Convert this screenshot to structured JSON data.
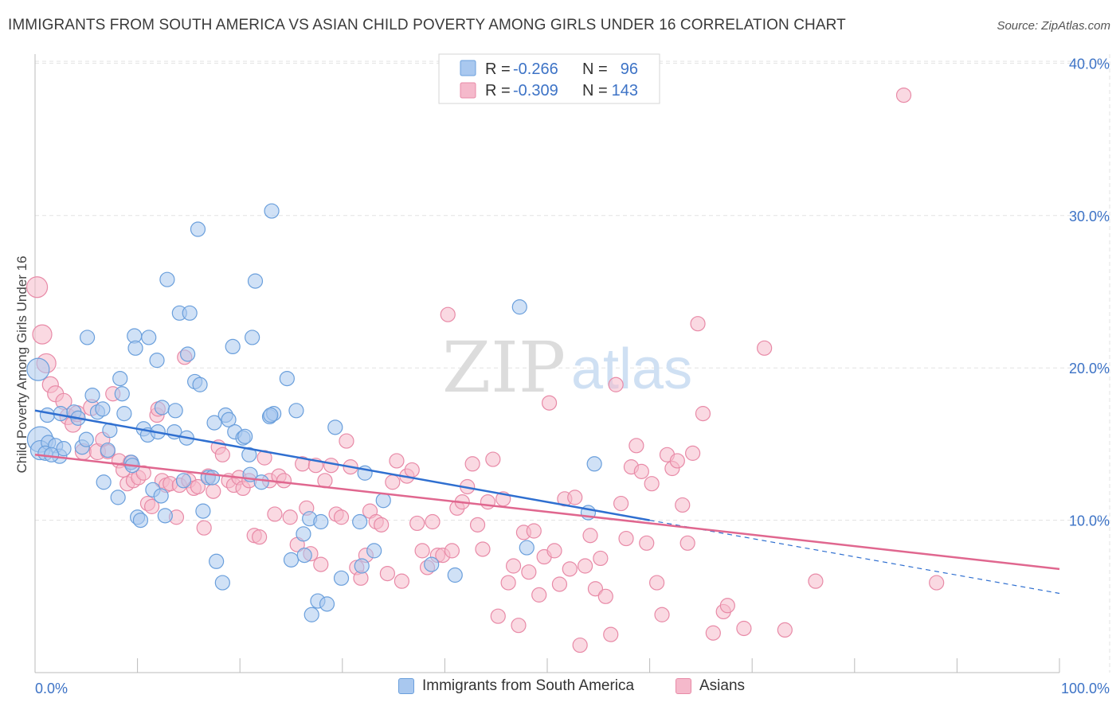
{
  "title": "IMMIGRANTS FROM SOUTH AMERICA VS ASIAN CHILD POVERTY AMONG GIRLS UNDER 16 CORRELATION CHART",
  "source": "Source: ZipAtlas.com",
  "watermark": {
    "zip": "ZIP",
    "atlas": "atlas"
  },
  "colors": {
    "blue_fill": "#a9c8ef",
    "blue_stroke": "#6a9fdc",
    "blue_line": "#2f6fd0",
    "pink_fill": "#f5b9cb",
    "pink_stroke": "#e88aa7",
    "pink_line": "#e0678f",
    "axis_text": "#3d73c6",
    "grid": "#e3e3e3"
  },
  "stats": {
    "rows": [
      {
        "r_label": "R =",
        "r_value": "-0.266",
        "n_label": "N =",
        "n_value": "96",
        "series": "blue"
      },
      {
        "r_label": "R =",
        "r_value": "-0.309",
        "n_label": "N =",
        "n_value": "143",
        "series": "pink"
      }
    ]
  },
  "chart_data": {
    "type": "scatter",
    "title": "IMMIGRANTS FROM SOUTH AMERICA VS ASIAN CHILD POVERTY AMONG GIRLS UNDER 16 CORRELATION CHART",
    "xlabel": "",
    "ylabel": "Child Poverty Among Girls Under 16",
    "xlim": [
      0,
      100
    ],
    "ylim": [
      0,
      42
    ],
    "x_tick_labels": [
      "0.0%",
      "100.0%"
    ],
    "y_ticks": [
      10,
      20,
      30,
      40
    ],
    "y_tick_labels": [
      "10.0%",
      "20.0%",
      "30.0%",
      "40.0%"
    ],
    "grid": true,
    "legend_position": "bottom-center",
    "series": [
      {
        "name": "Immigrants from South America",
        "color": "#a9c8ef",
        "trend": {
          "x": [
            0,
            60
          ],
          "y": [
            17.2,
            10.0
          ],
          "dashed_extension": {
            "x": [
              60,
              100
            ],
            "y": [
              10.0,
              5.2
            ]
          }
        },
        "points": [
          [
            0.5,
            15.3,
            16
          ],
          [
            0.5,
            14.6,
            12
          ],
          [
            1.2,
            16.9,
            9
          ],
          [
            1.3,
            15.1,
            9
          ],
          [
            2.0,
            14.9,
            9
          ],
          [
            2.4,
            14.2,
            9
          ],
          [
            2.5,
            17.0,
            9
          ],
          [
            2.8,
            14.7,
            9
          ],
          [
            3.8,
            17.1,
            9
          ],
          [
            4.2,
            16.7,
            9
          ],
          [
            4.6,
            14.8,
            9
          ],
          [
            5.1,
            22.0,
            9
          ],
          [
            5.6,
            18.2,
            9
          ],
          [
            6.1,
            17.1,
            9
          ],
          [
            6.6,
            17.3,
            9
          ],
          [
            6.7,
            12.5,
            9
          ],
          [
            7.1,
            14.6,
            9
          ],
          [
            7.3,
            15.9,
            9
          ],
          [
            8.1,
            11.5,
            9
          ],
          [
            8.3,
            19.3,
            9
          ],
          [
            8.5,
            18.3,
            9
          ],
          [
            8.7,
            17.0,
            9
          ],
          [
            9.4,
            13.8,
            9
          ],
          [
            9.5,
            13.6,
            9
          ],
          [
            9.7,
            22.1,
            9
          ],
          [
            9.8,
            21.3,
            9
          ],
          [
            10.0,
            10.2,
            9
          ],
          [
            10.3,
            10.0,
            9
          ],
          [
            10.6,
            16.0,
            9
          ],
          [
            11.0,
            15.6,
            9
          ],
          [
            11.1,
            22.0,
            9
          ],
          [
            11.5,
            12.0,
            9
          ],
          [
            11.9,
            20.5,
            9
          ],
          [
            12.3,
            11.6,
            9
          ],
          [
            12.4,
            17.4,
            9
          ],
          [
            12.7,
            10.3,
            9
          ],
          [
            12.9,
            25.8,
            9
          ],
          [
            13.6,
            15.8,
            9
          ],
          [
            13.7,
            17.2,
            9
          ],
          [
            14.1,
            23.6,
            9
          ],
          [
            14.5,
            12.6,
            9
          ],
          [
            14.8,
            15.4,
            9
          ],
          [
            14.9,
            20.9,
            9
          ],
          [
            15.1,
            23.6,
            9
          ],
          [
            15.6,
            19.1,
            9
          ],
          [
            15.9,
            29.1,
            9
          ],
          [
            16.1,
            18.9,
            9
          ],
          [
            16.4,
            10.6,
            9
          ],
          [
            16.9,
            12.8,
            9
          ],
          [
            17.3,
            12.8,
            9
          ],
          [
            17.5,
            16.4,
            9
          ],
          [
            17.7,
            7.3,
            9
          ],
          [
            18.3,
            5.9,
            9
          ],
          [
            18.6,
            16.9,
            9
          ],
          [
            18.9,
            16.6,
            9
          ],
          [
            19.3,
            21.4,
            9
          ],
          [
            19.5,
            15.8,
            9
          ],
          [
            20.3,
            15.4,
            9
          ],
          [
            20.5,
            15.5,
            9
          ],
          [
            20.9,
            14.3,
            9
          ],
          [
            21.0,
            13.0,
            9
          ],
          [
            21.2,
            22.0,
            9
          ],
          [
            21.5,
            25.7,
            9
          ],
          [
            22.1,
            12.5,
            9
          ],
          [
            22.9,
            16.8,
            9
          ],
          [
            23.1,
            30.3,
            9
          ],
          [
            23.3,
            17.0,
            9
          ],
          [
            24.6,
            19.3,
            9
          ],
          [
            25.0,
            7.4,
            9
          ],
          [
            25.5,
            17.2,
            9
          ],
          [
            26.2,
            9.1,
            9
          ],
          [
            26.3,
            7.7,
            9
          ],
          [
            26.8,
            10.1,
            9
          ],
          [
            27.0,
            3.8,
            9
          ],
          [
            27.6,
            4.7,
            9
          ],
          [
            27.9,
            9.9,
            9
          ],
          [
            28.5,
            4.5,
            9
          ],
          [
            29.3,
            16.1,
            9
          ],
          [
            29.9,
            6.2,
            9
          ],
          [
            31.7,
            9.9,
            9
          ],
          [
            31.9,
            7.0,
            9
          ],
          [
            32.2,
            13.1,
            9
          ],
          [
            33.1,
            8.0,
            9
          ],
          [
            34.0,
            11.3,
            9
          ],
          [
            38.7,
            7.1,
            9
          ],
          [
            47.3,
            24.0,
            9
          ],
          [
            54.0,
            10.5,
            9
          ],
          [
            54.6,
            13.7,
            9
          ],
          [
            0.3,
            19.9,
            14
          ],
          [
            1.0,
            14.4,
            9
          ],
          [
            1.6,
            14.3,
            9
          ],
          [
            5.0,
            15.3,
            9
          ],
          [
            12.0,
            15.8,
            9
          ],
          [
            23.0,
            16.9,
            9
          ],
          [
            41.0,
            6.4,
            9
          ],
          [
            48.0,
            8.2,
            9
          ]
        ]
      },
      {
        "name": "Asians",
        "color": "#f5b9cb",
        "trend": {
          "x": [
            0,
            100
          ],
          "y": [
            14.3,
            6.8
          ]
        },
        "points": [
          [
            0.2,
            25.3,
            13
          ],
          [
            0.7,
            22.2,
            12
          ],
          [
            1.1,
            20.3,
            12
          ],
          [
            1.5,
            18.9,
            10
          ],
          [
            2.0,
            18.3,
            10
          ],
          [
            2.8,
            17.8,
            10
          ],
          [
            3.2,
            16.8,
            10
          ],
          [
            3.7,
            16.3,
            10
          ],
          [
            4.1,
            17.0,
            10
          ],
          [
            4.7,
            14.5,
            10
          ],
          [
            5.5,
            17.4,
            10
          ],
          [
            6.1,
            14.5,
            10
          ],
          [
            6.6,
            15.3,
            9
          ],
          [
            7.1,
            14.5,
            9
          ],
          [
            7.6,
            18.3,
            9
          ],
          [
            8.2,
            13.9,
            9
          ],
          [
            8.6,
            13.3,
            9
          ],
          [
            9.0,
            12.4,
            9
          ],
          [
            9.3,
            13.8,
            9
          ],
          [
            9.6,
            12.6,
            9
          ],
          [
            10.1,
            12.8,
            9
          ],
          [
            10.6,
            13.1,
            9
          ],
          [
            11.0,
            11.1,
            9
          ],
          [
            11.4,
            10.9,
            9
          ],
          [
            11.9,
            16.9,
            9
          ],
          [
            12.0,
            17.3,
            9
          ],
          [
            12.4,
            12.6,
            9
          ],
          [
            12.8,
            12.3,
            9
          ],
          [
            13.2,
            12.4,
            9
          ],
          [
            13.8,
            10.2,
            9
          ],
          [
            14.1,
            12.3,
            9
          ],
          [
            14.6,
            20.7,
            9
          ],
          [
            15.0,
            12.6,
            9
          ],
          [
            15.5,
            12.1,
            9
          ],
          [
            15.9,
            12.2,
            9
          ],
          [
            16.5,
            9.5,
            9
          ],
          [
            16.9,
            12.9,
            9
          ],
          [
            17.4,
            11.9,
            9
          ],
          [
            17.9,
            14.8,
            9
          ],
          [
            18.3,
            14.3,
            9
          ],
          [
            18.9,
            12.6,
            9
          ],
          [
            19.4,
            12.3,
            9
          ],
          [
            19.9,
            12.8,
            9
          ],
          [
            20.3,
            12.1,
            9
          ],
          [
            20.9,
            12.6,
            9
          ],
          [
            21.4,
            9.0,
            9
          ],
          [
            21.9,
            8.9,
            9
          ],
          [
            22.4,
            14.1,
            9
          ],
          [
            22.9,
            12.6,
            9
          ],
          [
            23.4,
            10.4,
            9
          ],
          [
            23.8,
            12.9,
            9
          ],
          [
            24.3,
            12.6,
            9
          ],
          [
            24.9,
            10.2,
            9
          ],
          [
            25.6,
            8.4,
            9
          ],
          [
            26.1,
            13.7,
            9
          ],
          [
            26.5,
            10.8,
            9
          ],
          [
            26.9,
            7.8,
            9
          ],
          [
            27.4,
            13.6,
            9
          ],
          [
            27.9,
            7.1,
            9
          ],
          [
            28.3,
            12.6,
            9
          ],
          [
            28.9,
            13.6,
            9
          ],
          [
            29.4,
            10.4,
            9
          ],
          [
            29.9,
            10.2,
            9
          ],
          [
            30.4,
            15.2,
            9
          ],
          [
            30.8,
            13.5,
            9
          ],
          [
            31.4,
            6.9,
            9
          ],
          [
            31.8,
            6.2,
            9
          ],
          [
            32.3,
            7.7,
            9
          ],
          [
            32.7,
            10.6,
            9
          ],
          [
            33.3,
            9.9,
            9
          ],
          [
            33.8,
            9.7,
            9
          ],
          [
            34.4,
            6.5,
            9
          ],
          [
            34.9,
            12.5,
            9
          ],
          [
            35.3,
            13.9,
            9
          ],
          [
            35.8,
            6.0,
            9
          ],
          [
            36.3,
            12.9,
            9
          ],
          [
            36.8,
            13.3,
            9
          ],
          [
            37.3,
            9.8,
            9
          ],
          [
            37.8,
            8.0,
            9
          ],
          [
            38.3,
            6.9,
            9
          ],
          [
            38.8,
            9.9,
            9
          ],
          [
            39.3,
            7.7,
            9
          ],
          [
            39.8,
            7.7,
            9
          ],
          [
            40.3,
            23.5,
            9
          ],
          [
            40.7,
            8.0,
            9
          ],
          [
            41.2,
            10.8,
            9
          ],
          [
            41.7,
            11.2,
            9
          ],
          [
            42.2,
            12.2,
            9
          ],
          [
            42.7,
            13.7,
            9
          ],
          [
            43.2,
            9.7,
            9
          ],
          [
            43.7,
            8.1,
            9
          ],
          [
            44.2,
            11.2,
            9
          ],
          [
            44.7,
            14.0,
            9
          ],
          [
            45.2,
            3.7,
            9
          ],
          [
            45.7,
            11.4,
            9
          ],
          [
            46.2,
            5.9,
            9
          ],
          [
            46.7,
            7.0,
            9
          ],
          [
            47.2,
            3.1,
            9
          ],
          [
            47.7,
            9.2,
            9
          ],
          [
            48.2,
            6.6,
            9
          ],
          [
            48.7,
            9.3,
            9
          ],
          [
            49.2,
            5.1,
            9
          ],
          [
            49.7,
            7.6,
            9
          ],
          [
            50.2,
            17.7,
            9
          ],
          [
            50.7,
            8.0,
            9
          ],
          [
            51.2,
            5.8,
            9
          ],
          [
            51.7,
            11.4,
            9
          ],
          [
            52.2,
            6.8,
            9
          ],
          [
            52.7,
            11.5,
            9
          ],
          [
            53.2,
            1.8,
            9
          ],
          [
            53.7,
            7.0,
            9
          ],
          [
            54.2,
            9.0,
            9
          ],
          [
            54.7,
            5.5,
            9
          ],
          [
            55.2,
            7.5,
            9
          ],
          [
            55.7,
            5.0,
            9
          ],
          [
            56.2,
            2.5,
            9
          ],
          [
            56.7,
            18.9,
            9
          ],
          [
            57.2,
            11.1,
            9
          ],
          [
            57.7,
            8.8,
            9
          ],
          [
            58.2,
            13.5,
            9
          ],
          [
            58.7,
            14.9,
            9
          ],
          [
            59.2,
            13.2,
            9
          ],
          [
            59.7,
            8.5,
            9
          ],
          [
            60.2,
            12.4,
            9
          ],
          [
            60.7,
            5.9,
            9
          ],
          [
            61.2,
            3.8,
            9
          ],
          [
            61.7,
            14.3,
            9
          ],
          [
            62.2,
            13.4,
            9
          ],
          [
            62.7,
            13.9,
            9
          ],
          [
            63.2,
            11.0,
            9
          ],
          [
            63.7,
            8.5,
            9
          ],
          [
            64.2,
            14.4,
            9
          ],
          [
            64.7,
            22.9,
            9
          ],
          [
            65.2,
            17.0,
            9
          ],
          [
            66.2,
            2.6,
            9
          ],
          [
            67.2,
            4.0,
            9
          ],
          [
            67.6,
            4.4,
            9
          ],
          [
            69.2,
            2.9,
            9
          ],
          [
            73.2,
            2.8,
            9
          ],
          [
            76.2,
            6.0,
            9
          ],
          [
            71.2,
            21.3,
            9
          ],
          [
            84.8,
            37.9,
            9
          ],
          [
            88.0,
            5.9,
            9
          ]
        ]
      }
    ]
  }
}
